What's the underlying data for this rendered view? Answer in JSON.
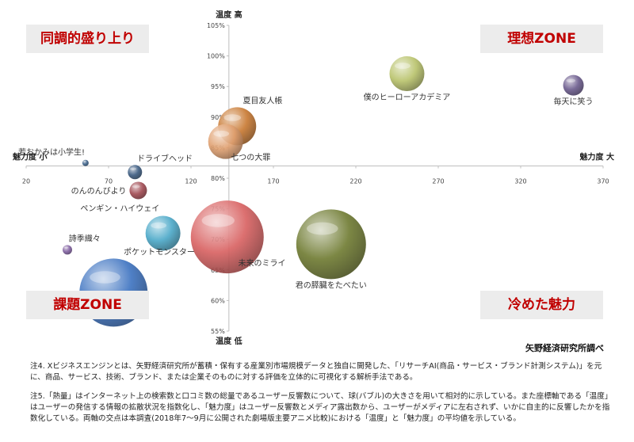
{
  "quadrants": {
    "top_left": "同調的盛り上り",
    "top_right": "理想ZONE",
    "bottom_left": "課題ZONE",
    "bottom_right": "冷めた魅力"
  },
  "source": "矢野経済研究所調べ",
  "notes": [
    "注4. Xビジネスエンジンとは、矢野経済研究所が蓄積・保有する産業別市場規模データと独自に開発した、「リサーチAI(商品・サービス・ブランド計測システム)」を元に、商品、サービス、技術、ブランド、または企業そのものに対する評価を立体的に可視化する解析手法である。",
    "注5.「熱量」はインターネット上の検索数と口コミ数の総量であるユーザー反響数について、球(バブル)の大きさを用いて相対的に示している。また座標軸である「温度」はユーザーの発信する情報の拡散状況を指数化し、「魅力度」はユーザー反響数とメディア露出数から、ユーザーがメディアに左右されず、いかに自主的に反響したかを指数化している。両軸の交点は本調査(2018年7〜9月に公開された劇場版主要アニメ比較)における「温度」と「魅力度」の平均値を示している。"
  ],
  "chart_data": {
    "type": "bubble",
    "x_axis": {
      "label_left": "魅力度 小",
      "label_right": "魅力度 大",
      "range": [
        20,
        370
      ],
      "ticks": [
        20,
        70,
        120,
        170,
        220,
        270,
        320,
        370
      ],
      "tick_labels": [
        "20",
        "70",
        "120",
        "170",
        "220",
        "270",
        "320",
        "370"
      ],
      "crosses_y_at": 0.82
    },
    "y_axis": {
      "label_top": "温度 高",
      "label_bottom": "温度 低",
      "range": [
        0.55,
        1.05
      ],
      "ticks": [
        0.55,
        0.6,
        0.65,
        0.7,
        0.75,
        0.8,
        0.85,
        0.9,
        0.95,
        1.0,
        1.05
      ],
      "tick_labels": [
        "55%",
        "60%",
        "65%",
        "70%",
        "75%",
        "80%",
        "85%",
        "90%",
        "95%",
        "100%",
        "105%"
      ],
      "crosses_x_at": 143
    },
    "bubbles": [
      {
        "label": "僕のヒーローアカデミア",
        "x": 251,
        "y": 0.971,
        "size": 22,
        "color": "#b8c26a",
        "label_pos": "below"
      },
      {
        "label": "毎天に笑う",
        "x": 352,
        "y": 0.952,
        "size": 13,
        "color": "#6a5a8c",
        "label_pos": "below"
      },
      {
        "label": "夏目友人帳",
        "x": 148,
        "y": 0.885,
        "size": 24,
        "color": "#c87830",
        "label_pos": "above-right"
      },
      {
        "label": "七つの大罪",
        "x": 141,
        "y": 0.86,
        "size": 22,
        "color": "#e0a070",
        "label_pos": "below-right"
      },
      {
        "label": "若おかみは小学生!",
        "x": 56,
        "y": 0.825,
        "size": 4,
        "color": "#3a6088",
        "label_pos": "above-left"
      },
      {
        "label": "ドライブヘッド",
        "x": 86,
        "y": 0.81,
        "size": 9,
        "color": "#3a5a80",
        "label_pos": "above-right"
      },
      {
        "label": "のんのんびより",
        "x": 88,
        "y": 0.78,
        "size": 11,
        "color": "#a04850",
        "label_pos": "left"
      },
      {
        "label": "ペンギン・ハイウェイ",
        "x": 103,
        "y": 0.71,
        "size": 22,
        "color": "#4aa8c8",
        "label_pos": "above-left"
      },
      {
        "label": "詩季織々",
        "x": 45,
        "y": 0.683,
        "size": 6,
        "color": "#8060a0",
        "label_pos": "above-right"
      },
      {
        "label": "未来のミライ",
        "x": 142,
        "y": 0.704,
        "size": 46,
        "color": "#d86060",
        "label_pos": "below-right"
      },
      {
        "label": "君の膵臓をたべたい",
        "x": 205,
        "y": 0.692,
        "size": 44,
        "color": "#6e7a30",
        "label_pos": "below"
      },
      {
        "label": "ポケットモンスター",
        "x": 73,
        "y": 0.613,
        "size": 43,
        "color": "#3c72c0",
        "label_pos": "above-right"
      }
    ]
  },
  "colors": {
    "quadrant_text": "#c00000",
    "quadrant_bg": "#ececec",
    "axis": "#bfbfbf"
  }
}
